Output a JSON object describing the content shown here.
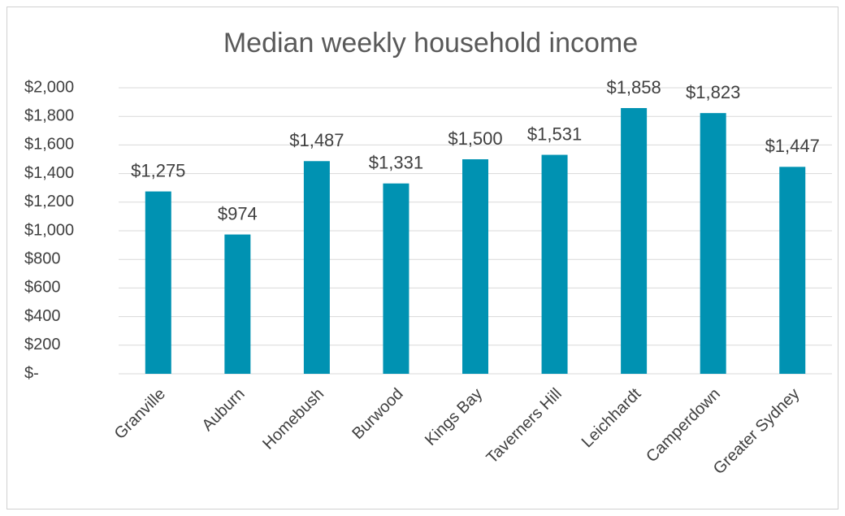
{
  "chart_data": {
    "type": "bar",
    "title": "Median weekly household income",
    "categories": [
      "Granville",
      "Auburn",
      "Homebush",
      "Burwood",
      "Kings Bay",
      "Taverners Hill",
      "Leichhardt",
      "Camperdown",
      "Greater Sydney"
    ],
    "values": [
      1275,
      974,
      1487,
      1331,
      1500,
      1531,
      1858,
      1823,
      1447
    ],
    "value_labels": [
      "$1,275",
      "$974",
      "$1,487",
      "$1,331",
      "$1,500",
      "$1,531",
      "$1,858",
      "$1,823",
      "$1,447"
    ],
    "color": "#0092b2",
    "ylim": [
      0,
      2000
    ],
    "yticks": [
      {
        "value": 0,
        "label": "$-"
      },
      {
        "value": 200,
        "label": "$200"
      },
      {
        "value": 400,
        "label": "$400"
      },
      {
        "value": 600,
        "label": "$600"
      },
      {
        "value": 800,
        "label": "$800"
      },
      {
        "value": 1000,
        "label": "$1,000"
      },
      {
        "value": 1200,
        "label": "$1,200"
      },
      {
        "value": 1400,
        "label": "$1,400"
      },
      {
        "value": 1600,
        "label": "$1,600"
      },
      {
        "value": 1800,
        "label": "$1,800"
      },
      {
        "value": 2000,
        "label": "$2,000"
      }
    ],
    "grid": true
  }
}
